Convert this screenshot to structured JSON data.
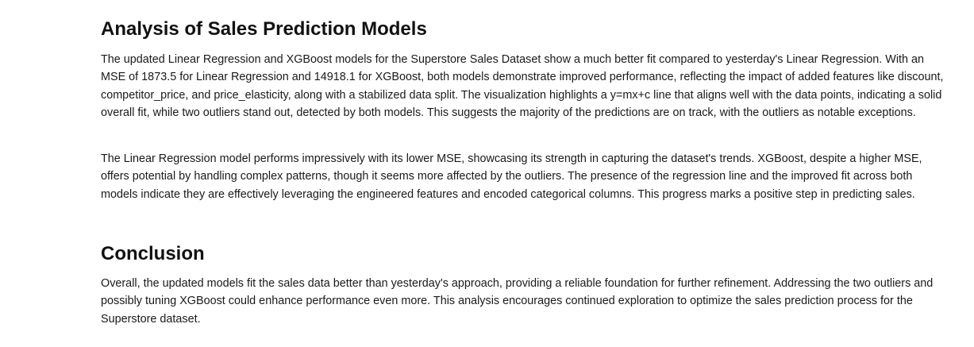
{
  "sections": [
    {
      "heading": "Analysis of Sales Prediction Models",
      "paragraphs": [
        "The updated Linear Regression and XGBoost models for the Superstore Sales Dataset show a much better fit compared to yesterday's Linear Regression. With an MSE of 1873.5 for Linear Regression and 14918.1 for XGBoost, both models demonstrate improved performance, reflecting the impact of added features like discount, competitor_price, and price_elasticity, along with a stabilized data split. The visualization highlights a y=mx+c line that aligns well with the data points, indicating a solid overall fit, while two outliers stand out, detected by both models. This suggests the majority of the predictions are on track, with the outliers as notable exceptions.",
        "The Linear Regression model performs impressively with its lower MSE, showcasing its strength in capturing the dataset's trends. XGBoost, despite a higher MSE, offers potential by handling complex patterns, though it seems more affected by the outliers. The presence of the regression line and the improved fit across both models indicate they are effectively leveraging the engineered features and encoded categorical columns. This progress marks a positive step in predicting sales."
      ]
    },
    {
      "heading": "Conclusion",
      "paragraphs": [
        "Overall, the updated models fit the sales data better than yesterday's approach, providing a reliable foundation for further refinement. Addressing the two outliers and possibly tuning XGBoost could enhance performance even more. This analysis encourages continued exploration to optimize the sales prediction process for the Superstore dataset."
      ]
    }
  ]
}
